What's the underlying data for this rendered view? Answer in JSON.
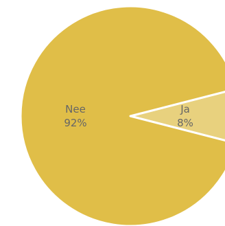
{
  "chart_data": {
    "type": "pie",
    "slices": [
      {
        "label": "Nee",
        "value": 92,
        "value_label": "92%",
        "color": "#E0BE48"
      },
      {
        "label": "Ja",
        "value": 8,
        "value_label": "8%",
        "color": "#E8D17E"
      }
    ],
    "start_angle_deg": 0,
    "slice_border_color": "#ffffff",
    "label_color": "#666666"
  }
}
